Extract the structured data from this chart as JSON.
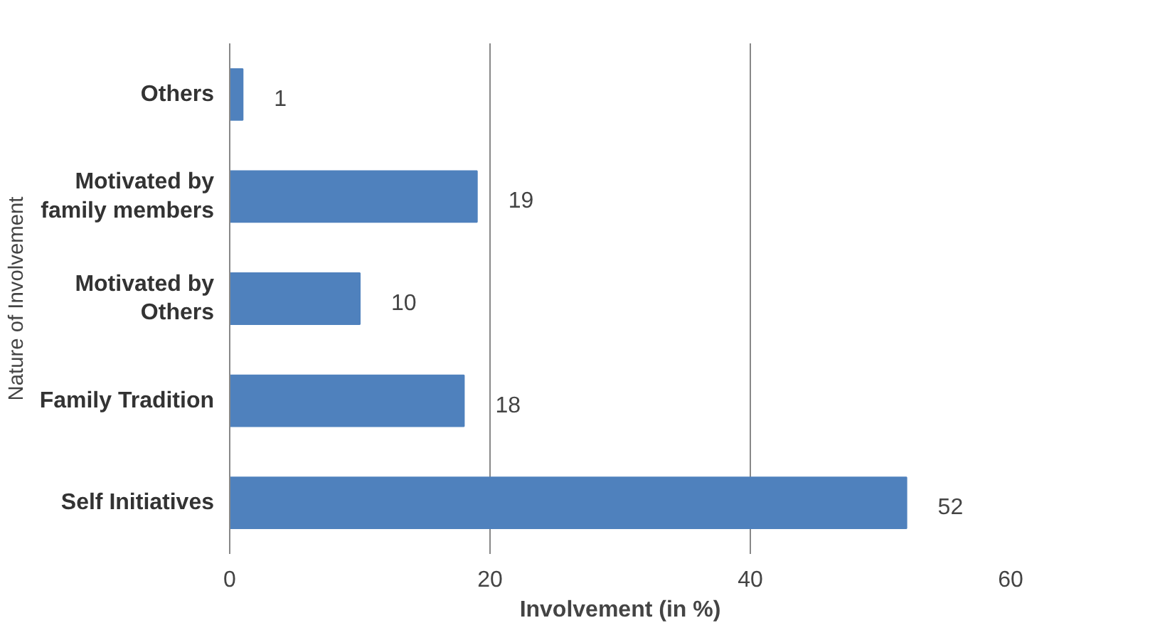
{
  "chart_data": {
    "type": "bar",
    "orientation": "horizontal",
    "categories": [
      "Others",
      "Motivated by family members",
      "Motivated by Others",
      "Family Tradition",
      "Self Initiatives"
    ],
    "values": [
      1,
      19,
      10,
      18,
      52
    ],
    "color": "#4f81bd",
    "xlim": [
      0,
      60
    ],
    "xticks": [
      0,
      20,
      40,
      60
    ],
    "grid": "x",
    "data_labels": true,
    "xlabel": "Involvement (in %)",
    "ylabel": "Nature of Involvement"
  }
}
